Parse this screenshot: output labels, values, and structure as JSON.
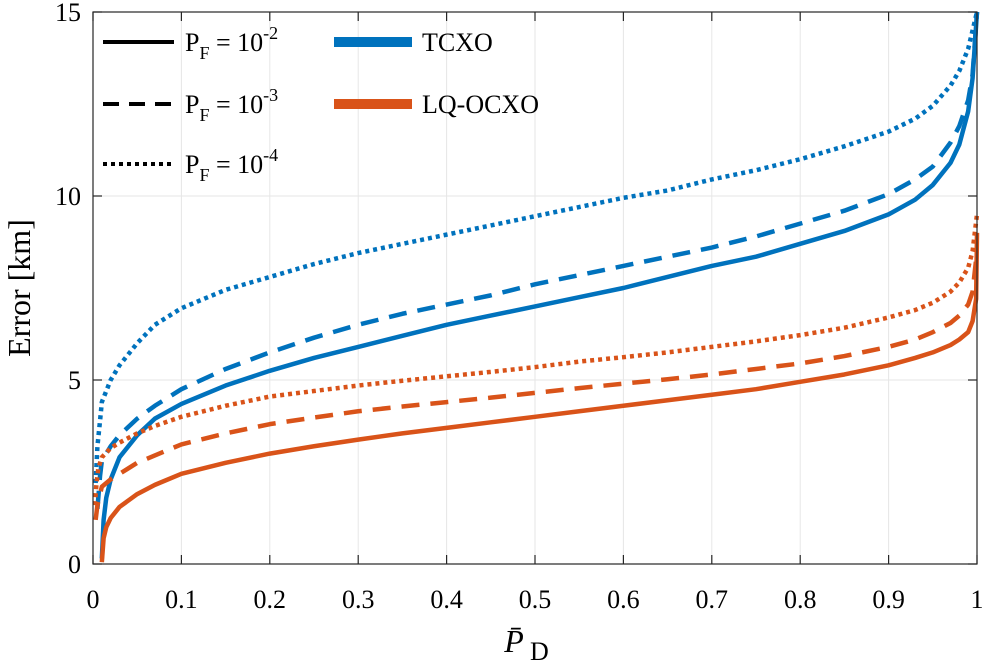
{
  "chart_data": {
    "type": "line",
    "title": "",
    "xlabel": "P̄D",
    "xlabel_main": "P̄",
    "xlabel_sub": "D",
    "ylabel": "Error [km]",
    "xlim": [
      0,
      1
    ],
    "ylim": [
      0,
      15
    ],
    "grid": true,
    "x_ticks": [
      0,
      0.1,
      0.2,
      0.3,
      0.4,
      0.5,
      0.6,
      0.7,
      0.8,
      0.9,
      1
    ],
    "x_tick_labels": [
      "0",
      "0.1",
      "0.2",
      "0.3",
      "0.4",
      "0.5",
      "0.6",
      "0.7",
      "0.8",
      "0.9",
      "1"
    ],
    "y_ticks": [
      0,
      5,
      10,
      15
    ],
    "y_tick_labels": [
      "0",
      "5",
      "10",
      "15"
    ],
    "legend": {
      "placement": "top-left",
      "style_entries": [
        {
          "style": "solid",
          "base": "P",
          "sub": "F",
          "eq": " = 10",
          "exp": "-2"
        },
        {
          "style": "dashed",
          "base": "P",
          "sub": "F",
          "eq": " = 10",
          "exp": "-3"
        },
        {
          "style": "dotted",
          "base": "P",
          "sub": "F",
          "eq": " = 10",
          "exp": "-4"
        }
      ],
      "color_entries": [
        {
          "label": "TCXO",
          "color": "#0072BD"
        },
        {
          "label": "LQ-OCXO",
          "color": "#D95319"
        }
      ]
    },
    "series": [
      {
        "name": "TCXO, PF = 10^-2",
        "oscillator": "TCXO",
        "style": "solid",
        "color": "#0072BD",
        "points": [
          [
            0.01,
            0.15
          ],
          [
            0.012,
            1.2
          ],
          [
            0.015,
            1.8
          ],
          [
            0.02,
            2.3
          ],
          [
            0.03,
            2.9
          ],
          [
            0.05,
            3.5
          ],
          [
            0.07,
            3.95
          ],
          [
            0.1,
            4.35
          ],
          [
            0.15,
            4.85
          ],
          [
            0.2,
            5.25
          ],
          [
            0.25,
            5.6
          ],
          [
            0.3,
            5.9
          ],
          [
            0.35,
            6.2
          ],
          [
            0.4,
            6.5
          ],
          [
            0.45,
            6.75
          ],
          [
            0.5,
            7.0
          ],
          [
            0.55,
            7.25
          ],
          [
            0.6,
            7.5
          ],
          [
            0.65,
            7.8
          ],
          [
            0.7,
            8.1
          ],
          [
            0.75,
            8.35
          ],
          [
            0.8,
            8.7
          ],
          [
            0.85,
            9.05
          ],
          [
            0.9,
            9.5
          ],
          [
            0.93,
            9.9
          ],
          [
            0.95,
            10.3
          ],
          [
            0.97,
            10.9
          ],
          [
            0.98,
            11.4
          ],
          [
            0.99,
            12.3
          ],
          [
            0.995,
            13.2
          ],
          [
            1.0,
            15.0
          ]
        ]
      },
      {
        "name": "TCXO, PF = 10^-3",
        "oscillator": "TCXO",
        "style": "dashed",
        "color": "#0072BD",
        "points": [
          [
            0.005,
            1.5
          ],
          [
            0.008,
            2.4
          ],
          [
            0.01,
            2.8
          ],
          [
            0.02,
            3.2
          ],
          [
            0.03,
            3.5
          ],
          [
            0.05,
            3.95
          ],
          [
            0.07,
            4.3
          ],
          [
            0.1,
            4.75
          ],
          [
            0.15,
            5.3
          ],
          [
            0.2,
            5.75
          ],
          [
            0.25,
            6.15
          ],
          [
            0.3,
            6.5
          ],
          [
            0.35,
            6.8
          ],
          [
            0.4,
            7.05
          ],
          [
            0.45,
            7.3
          ],
          [
            0.5,
            7.6
          ],
          [
            0.55,
            7.85
          ],
          [
            0.6,
            8.1
          ],
          [
            0.65,
            8.35
          ],
          [
            0.7,
            8.6
          ],
          [
            0.75,
            8.9
          ],
          [
            0.8,
            9.25
          ],
          [
            0.85,
            9.6
          ],
          [
            0.9,
            10.05
          ],
          [
            0.93,
            10.45
          ],
          [
            0.95,
            10.8
          ],
          [
            0.97,
            11.45
          ],
          [
            0.98,
            11.9
          ],
          [
            0.99,
            12.6
          ],
          [
            0.995,
            13.3
          ],
          [
            1.0,
            15.0
          ]
        ]
      },
      {
        "name": "TCXO, PF = 10^-4",
        "oscillator": "TCXO",
        "style": "dotted",
        "color": "#0072BD",
        "points": [
          [
            0.003,
            2.2
          ],
          [
            0.005,
            3.2
          ],
          [
            0.008,
            3.9
          ],
          [
            0.01,
            4.4
          ],
          [
            0.02,
            5.0
          ],
          [
            0.03,
            5.4
          ],
          [
            0.05,
            6.0
          ],
          [
            0.07,
            6.5
          ],
          [
            0.1,
            6.95
          ],
          [
            0.15,
            7.45
          ],
          [
            0.2,
            7.8
          ],
          [
            0.25,
            8.15
          ],
          [
            0.3,
            8.45
          ],
          [
            0.35,
            8.7
          ],
          [
            0.4,
            8.95
          ],
          [
            0.45,
            9.2
          ],
          [
            0.5,
            9.45
          ],
          [
            0.55,
            9.7
          ],
          [
            0.6,
            9.95
          ],
          [
            0.65,
            10.15
          ],
          [
            0.7,
            10.45
          ],
          [
            0.75,
            10.7
          ],
          [
            0.8,
            11.0
          ],
          [
            0.85,
            11.35
          ],
          [
            0.9,
            11.75
          ],
          [
            0.93,
            12.1
          ],
          [
            0.95,
            12.45
          ],
          [
            0.97,
            13.0
          ],
          [
            0.98,
            13.4
          ],
          [
            0.99,
            14.0
          ],
          [
            0.995,
            14.5
          ],
          [
            1.0,
            15.0
          ]
        ]
      },
      {
        "name": "LQ-OCXO, PF = 10^-2",
        "oscillator": "LQ-OCXO",
        "style": "solid",
        "color": "#D95319",
        "points": [
          [
            0.01,
            0.05
          ],
          [
            0.012,
            0.7
          ],
          [
            0.015,
            1.0
          ],
          [
            0.02,
            1.25
          ],
          [
            0.03,
            1.55
          ],
          [
            0.05,
            1.9
          ],
          [
            0.07,
            2.15
          ],
          [
            0.1,
            2.45
          ],
          [
            0.15,
            2.75
          ],
          [
            0.2,
            3.0
          ],
          [
            0.25,
            3.2
          ],
          [
            0.3,
            3.38
          ],
          [
            0.35,
            3.55
          ],
          [
            0.4,
            3.7
          ],
          [
            0.45,
            3.85
          ],
          [
            0.5,
            4.0
          ],
          [
            0.55,
            4.15
          ],
          [
            0.6,
            4.3
          ],
          [
            0.65,
            4.45
          ],
          [
            0.7,
            4.6
          ],
          [
            0.75,
            4.75
          ],
          [
            0.8,
            4.95
          ],
          [
            0.85,
            5.15
          ],
          [
            0.9,
            5.4
          ],
          [
            0.93,
            5.6
          ],
          [
            0.95,
            5.75
          ],
          [
            0.97,
            5.95
          ],
          [
            0.98,
            6.1
          ],
          [
            0.99,
            6.3
          ],
          [
            0.995,
            6.6
          ],
          [
            0.999,
            7.2
          ],
          [
            1.0,
            9.0
          ]
        ]
      },
      {
        "name": "LQ-OCXO, PF = 10^-3",
        "oscillator": "LQ-OCXO",
        "style": "dashed",
        "color": "#D95319",
        "points": [
          [
            0.003,
            1.2
          ],
          [
            0.005,
            1.6
          ],
          [
            0.008,
            1.9
          ],
          [
            0.01,
            2.1
          ],
          [
            0.02,
            2.3
          ],
          [
            0.03,
            2.45
          ],
          [
            0.05,
            2.75
          ],
          [
            0.07,
            2.95
          ],
          [
            0.1,
            3.25
          ],
          [
            0.15,
            3.55
          ],
          [
            0.2,
            3.8
          ],
          [
            0.25,
            3.98
          ],
          [
            0.3,
            4.15
          ],
          [
            0.35,
            4.28
          ],
          [
            0.4,
            4.4
          ],
          [
            0.45,
            4.52
          ],
          [
            0.5,
            4.65
          ],
          [
            0.55,
            4.78
          ],
          [
            0.6,
            4.9
          ],
          [
            0.65,
            5.02
          ],
          [
            0.7,
            5.15
          ],
          [
            0.75,
            5.3
          ],
          [
            0.8,
            5.45
          ],
          [
            0.85,
            5.65
          ],
          [
            0.9,
            5.9
          ],
          [
            0.93,
            6.1
          ],
          [
            0.95,
            6.3
          ],
          [
            0.97,
            6.55
          ],
          [
            0.98,
            6.75
          ],
          [
            0.99,
            7.05
          ],
          [
            0.995,
            7.4
          ],
          [
            1.0,
            8.5
          ]
        ]
      },
      {
        "name": "LQ-OCXO, PF = 10^-4",
        "oscillator": "LQ-OCXO",
        "style": "dotted",
        "color": "#D95319",
        "points": [
          [
            0.002,
            1.6
          ],
          [
            0.004,
            2.2
          ],
          [
            0.006,
            2.6
          ],
          [
            0.01,
            2.9
          ],
          [
            0.02,
            3.15
          ],
          [
            0.03,
            3.3
          ],
          [
            0.05,
            3.55
          ],
          [
            0.07,
            3.75
          ],
          [
            0.1,
            4.0
          ],
          [
            0.15,
            4.3
          ],
          [
            0.2,
            4.55
          ],
          [
            0.25,
            4.7
          ],
          [
            0.3,
            4.85
          ],
          [
            0.35,
            4.98
          ],
          [
            0.4,
            5.1
          ],
          [
            0.45,
            5.22
          ],
          [
            0.5,
            5.35
          ],
          [
            0.55,
            5.5
          ],
          [
            0.6,
            5.62
          ],
          [
            0.65,
            5.75
          ],
          [
            0.7,
            5.9
          ],
          [
            0.75,
            6.05
          ],
          [
            0.8,
            6.22
          ],
          [
            0.85,
            6.42
          ],
          [
            0.9,
            6.7
          ],
          [
            0.93,
            6.9
          ],
          [
            0.95,
            7.1
          ],
          [
            0.97,
            7.4
          ],
          [
            0.98,
            7.65
          ],
          [
            0.99,
            8.05
          ],
          [
            0.995,
            8.5
          ],
          [
            1.0,
            9.5
          ]
        ]
      }
    ]
  }
}
